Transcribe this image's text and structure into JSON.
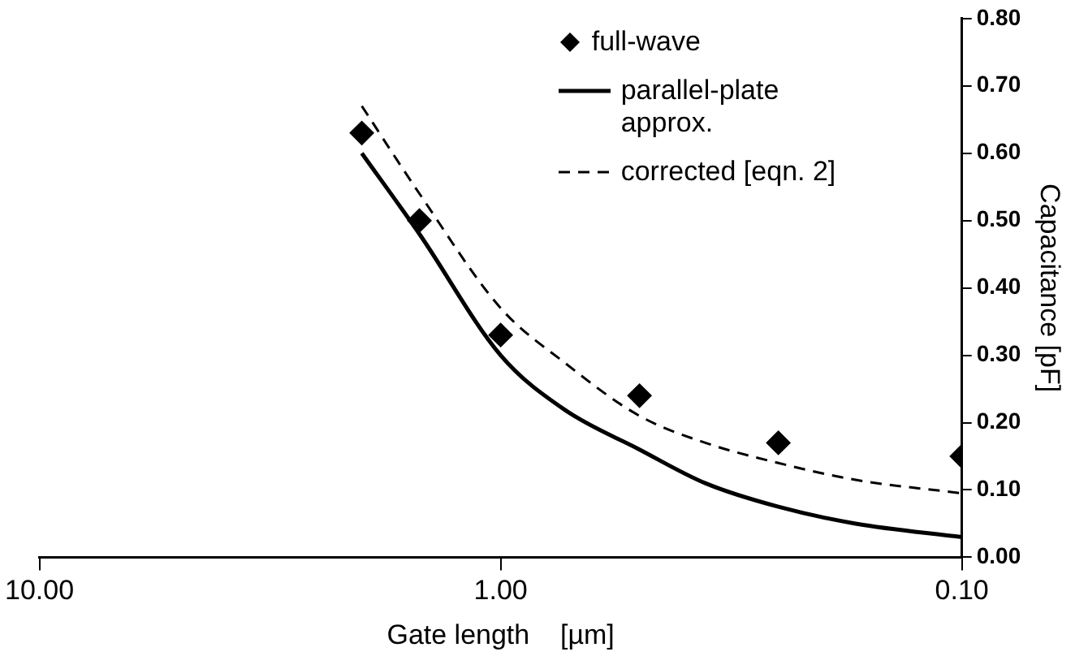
{
  "chart_data": {
    "type": "line",
    "xlabel": "Gate length    [µm]",
    "ylabel": "Capacitance [pF]",
    "log": "x",
    "xlim": [
      10,
      0.1
    ],
    "xticks": [
      {
        "value": 10,
        "label": "10.00"
      },
      {
        "value": 1,
        "label": "1.00"
      },
      {
        "value": 0.1,
        "label": "0.10"
      }
    ],
    "ylim": [
      0,
      0.8
    ],
    "yticks": [
      {
        "value": 0,
        "label": "0.00"
      },
      {
        "value": 0.1,
        "label": "0.10"
      },
      {
        "value": 0.2,
        "label": "0.20"
      },
      {
        "value": 0.3,
        "label": "0.30"
      },
      {
        "value": 0.4,
        "label": "0.40"
      },
      {
        "value": 0.5,
        "label": "0.50"
      },
      {
        "value": 0.6,
        "label": "0.60"
      },
      {
        "value": 0.7,
        "label": "0.70"
      },
      {
        "value": 0.8,
        "label": "0.80"
      }
    ],
    "grid": false,
    "legend": "top right",
    "series": [
      {
        "name": "full-wave",
        "type": "scatter",
        "marker": "diamond",
        "color": "#000000",
        "x": [
          2.0,
          1.5,
          1.0,
          0.5,
          0.25,
          0.1
        ],
        "values": [
          0.63,
          0.5,
          0.33,
          0.24,
          0.17,
          0.15
        ]
      },
      {
        "name": "parallel-plate approx.",
        "line_style": "solid",
        "color": "#000000",
        "x": [
          2.0,
          1.5,
          1.0,
          0.73,
          0.5,
          0.36,
          0.25,
          0.17,
          0.1
        ],
        "values": [
          0.6,
          0.48,
          0.3,
          0.22,
          0.16,
          0.11,
          0.075,
          0.05,
          0.03
        ]
      },
      {
        "name": "corrected [eqn. 2]",
        "line_style": "dashed",
        "color": "#000000",
        "x": [
          2.0,
          1.5,
          1.0,
          0.73,
          0.5,
          0.36,
          0.25,
          0.17,
          0.1
        ],
        "values": [
          0.67,
          0.54,
          0.37,
          0.29,
          0.21,
          0.17,
          0.14,
          0.115,
          0.095
        ]
      }
    ]
  }
}
